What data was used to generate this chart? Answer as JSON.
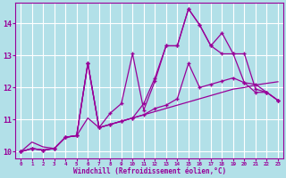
{
  "xlabel": "Windchill (Refroidissement éolien,°C)",
  "x": [
    0,
    1,
    2,
    3,
    4,
    5,
    6,
    7,
    8,
    9,
    10,
    11,
    12,
    13,
    14,
    15,
    16,
    17,
    18,
    19,
    20,
    21,
    22,
    23
  ],
  "line1": [
    10.0,
    10.3,
    10.15,
    10.1,
    10.45,
    10.5,
    11.05,
    10.75,
    10.85,
    10.95,
    11.05,
    11.15,
    11.25,
    11.35,
    11.45,
    11.55,
    11.65,
    11.75,
    11.85,
    11.95,
    12.0,
    12.08,
    12.13,
    12.18
  ],
  "line2": [
    10.0,
    10.1,
    10.05,
    10.1,
    10.45,
    10.5,
    12.75,
    10.75,
    10.85,
    10.95,
    11.05,
    11.15,
    11.35,
    11.45,
    11.65,
    12.75,
    12.0,
    12.1,
    12.2,
    12.3,
    12.15,
    11.85,
    11.85,
    11.6
  ],
  "line3": [
    10.0,
    10.1,
    10.05,
    10.1,
    10.45,
    10.5,
    12.75,
    10.75,
    11.2,
    11.5,
    13.05,
    11.3,
    12.2,
    13.3,
    13.3,
    14.45,
    13.95,
    13.3,
    13.7,
    13.05,
    13.05,
    11.95,
    11.85,
    11.6
  ],
  "line4": [
    10.0,
    10.1,
    10.05,
    10.1,
    10.45,
    10.5,
    12.75,
    10.75,
    10.85,
    10.95,
    11.05,
    11.5,
    12.3,
    13.3,
    13.3,
    14.45,
    13.95,
    13.3,
    13.05,
    13.05,
    12.15,
    12.1,
    11.85,
    11.6
  ],
  "color": "#990099",
  "bg_color": "#b2e0e8",
  "grid_color": "#ffffff",
  "ylim": [
    9.8,
    14.65
  ],
  "xlim": [
    -0.5,
    23.5
  ],
  "yticks": [
    10,
    11,
    12,
    13,
    14
  ],
  "xticks": [
    0,
    1,
    2,
    3,
    4,
    5,
    6,
    7,
    8,
    9,
    10,
    11,
    12,
    13,
    14,
    15,
    16,
    17,
    18,
    19,
    20,
    21,
    22,
    23
  ]
}
